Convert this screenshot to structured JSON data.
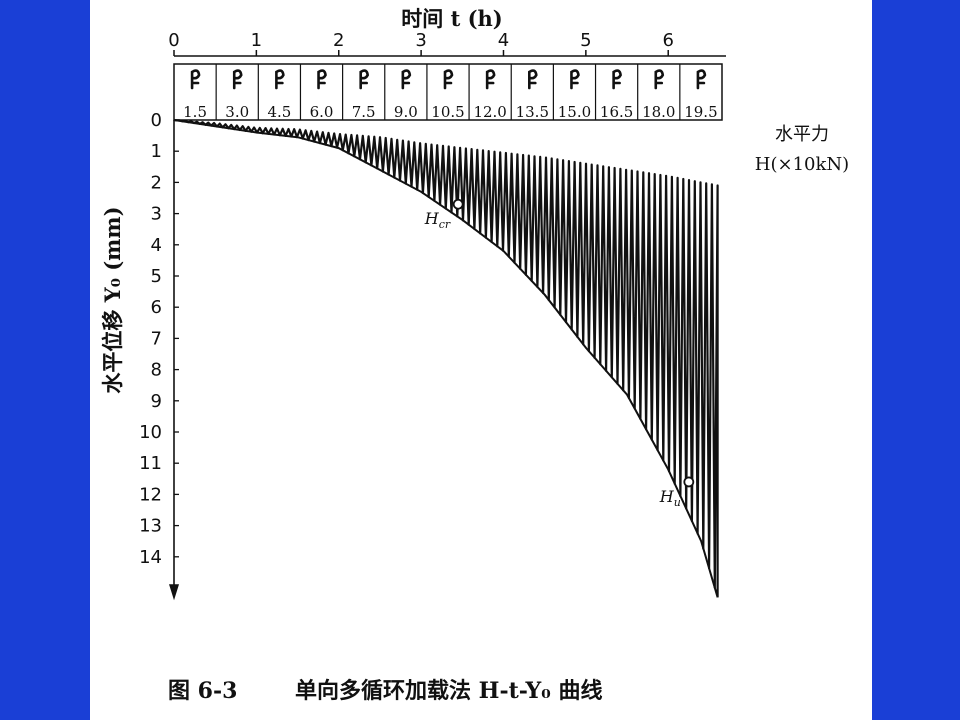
{
  "colors": {
    "frame": "#1a3fd6",
    "page": "#ffffff",
    "ink": "#111111"
  },
  "chart_data": {
    "type": "line",
    "title": "",
    "x_axis": {
      "label": "时间 t (h)",
      "position": "top",
      "ticks": [
        "0",
        "1",
        "2",
        "3",
        "4",
        "5",
        "6"
      ],
      "range": [
        0,
        6.75
      ]
    },
    "y_axis": {
      "label": "水平位移 Y₀ (mm)",
      "ticks": [
        "0",
        "1",
        "2",
        "3",
        "4",
        "5",
        "6",
        "7",
        "8",
        "9",
        "10",
        "11",
        "12",
        "13",
        "14"
      ],
      "range": [
        0,
        15
      ],
      "inverted": true
    },
    "load_row": {
      "label_line1": "水平力",
      "label_line2": "H(×10kN)",
      "values": [
        "1.5",
        "3.0",
        "4.5",
        "6.0",
        "7.5",
        "9.0",
        "10.5",
        "12.0",
        "13.5",
        "15.0",
        "16.5",
        "18.0",
        "19.5"
      ]
    },
    "series": [
      {
        "name": "",
        "style": "cyclic-loading-oscillation",
        "lower_envelope": {
          "t": [
            0,
            0.5,
            1,
            1.5,
            2,
            2.5,
            3,
            3.5,
            4,
            4.5,
            5,
            5.5,
            6,
            6.4,
            6.6
          ],
          "y": [
            0,
            0.2,
            0.4,
            0.55,
            0.9,
            1.6,
            2.3,
            3.2,
            4.2,
            5.6,
            7.3,
            8.8,
            11.2,
            13.5,
            15.3
          ]
        },
        "upper_envelope": {
          "t": [
            0,
            0.5,
            1,
            1.5,
            2,
            2.5,
            3,
            3.5,
            4,
            4.5,
            5,
            5.5,
            6,
            6.4,
            6.6
          ],
          "y": [
            0,
            0.1,
            0.25,
            0.3,
            0.45,
            0.55,
            0.75,
            0.9,
            1.05,
            1.2,
            1.4,
            1.6,
            1.8,
            2.0,
            2.1
          ]
        }
      }
    ],
    "annotations": [
      {
        "label": "H",
        "sub": "cr",
        "t": 3.45,
        "y": 2.7
      },
      {
        "label": "H",
        "sub": "u",
        "t": 6.25,
        "y": 11.6
      }
    ]
  },
  "caption": {
    "figure_no": "图 6-3",
    "text": "单向多循环加载法 H-t-Y₀ 曲线"
  }
}
